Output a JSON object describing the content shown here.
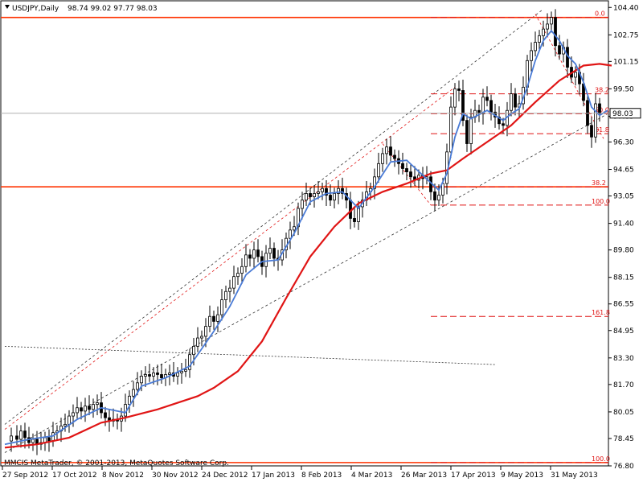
{
  "header": {
    "symbol_label": "USDJPY,Daily",
    "ohlc_label": "98.74 99.02 97.77 98.03"
  },
  "footer": {
    "copyright": "MMCIS MetaTrader, © 2001-2013, MetaQuotes Software Corp."
  },
  "colors": {
    "candle_up": "#ffffff",
    "candle_down": "#000000",
    "ma_fast": "#4a7bd6",
    "ma_slow": "#e01515",
    "horizontal_level": "#ff3300",
    "fib_dashed": "#e01515",
    "channel_dashed": "#333333",
    "current_price_line": "#b0b0b0"
  },
  "chart_data": {
    "type": "candlestick",
    "title": "USDJPY,Daily",
    "ylim": [
      76.8,
      104.8
    ],
    "grid": false,
    "y_ticks": [
      "104.40",
      "102.75",
      "101.15",
      "99.50",
      "97.85",
      "96.30",
      "94.65",
      "93.05",
      "91.40",
      "89.80",
      "88.15",
      "86.55",
      "84.95",
      "83.30",
      "81.70",
      "80.05",
      "78.45",
      "76.80"
    ],
    "x_ticks": [
      "27 Sep 2012",
      "17 Oct 2012",
      "8 Nov 2012",
      "30 Nov 2012",
      "24 Dec 2012",
      "17 Jan 2013",
      "8 Feb 2013",
      "4 Mar 2013",
      "26 Mar 2013",
      "17 Apr 2013",
      "9 May 2013",
      "31 May 2013"
    ],
    "current_price": "98.03",
    "ohlc_last": {
      "open": 98.74,
      "high": 99.02,
      "low": 97.77,
      "close": 98.03
    },
    "horizontal_levels": [
      103.8,
      93.6,
      77.0
    ],
    "fib_levels_upper": [
      {
        "label": "0.0",
        "value": 103.8
      },
      {
        "label": "38.2",
        "value": 99.2
      },
      {
        "label": "50.0",
        "value": 98.0
      },
      {
        "label": "61.8",
        "value": 96.8
      }
    ],
    "fib_levels_lower": [
      {
        "label": "38.2",
        "value": 93.6
      },
      {
        "label": "100.0",
        "value": 92.5
      },
      {
        "label": "161.8",
        "value": 85.8
      },
      {
        "label": "100.0",
        "value": 77.0
      }
    ],
    "close_path": [
      [
        0,
        78.3
      ],
      [
        8,
        78.6
      ],
      [
        15,
        78.4
      ],
      [
        20,
        78.9
      ],
      [
        25,
        78.5
      ],
      [
        30,
        78.2
      ],
      [
        35,
        78.4
      ],
      [
        40,
        78.1
      ],
      [
        45,
        78.2
      ],
      [
        50,
        78.5
      ],
      [
        55,
        78.3
      ],
      [
        60,
        78.8
      ],
      [
        65,
        78.9
      ],
      [
        70,
        79.2
      ],
      [
        75,
        79.3
      ],
      [
        80,
        79.8
      ],
      [
        85,
        80.0
      ],
      [
        90,
        80.3
      ],
      [
        95,
        80.1
      ],
      [
        100,
        80.4
      ],
      [
        105,
        80.2
      ],
      [
        110,
        80.5
      ],
      [
        115,
        80.6
      ],
      [
        120,
        80.0
      ],
      [
        125,
        79.7
      ],
      [
        130,
        79.5
      ],
      [
        135,
        79.6
      ],
      [
        140,
        79.5
      ],
      [
        145,
        79.8
      ],
      [
        150,
        80.5
      ],
      [
        155,
        81.0
      ],
      [
        160,
        81.4
      ],
      [
        165,
        81.8
      ],
      [
        170,
        82.2
      ],
      [
        175,
        82.3
      ],
      [
        180,
        82.2
      ],
      [
        185,
        82.4
      ],
      [
        190,
        82.3
      ],
      [
        195,
        82.1
      ],
      [
        200,
        82.3
      ],
      [
        205,
        82.4
      ],
      [
        210,
        82.2
      ],
      [
        215,
        82.4
      ],
      [
        220,
        82.5
      ],
      [
        225,
        82.6
      ],
      [
        230,
        83.5
      ],
      [
        235,
        84.0
      ],
      [
        240,
        84.5
      ],
      [
        245,
        84.6
      ],
      [
        250,
        85.2
      ],
      [
        255,
        85.8
      ],
      [
        260,
        85.5
      ],
      [
        265,
        85.9
      ],
      [
        270,
        86.8
      ],
      [
        275,
        87.3
      ],
      [
        280,
        87.5
      ],
      [
        285,
        88.2
      ],
      [
        290,
        88.4
      ],
      [
        295,
        88.8
      ],
      [
        300,
        89.5
      ],
      [
        305,
        89.3
      ],
      [
        310,
        89.8
      ],
      [
        315,
        89.4
      ],
      [
        320,
        88.8
      ],
      [
        325,
        89.6
      ],
      [
        330,
        89.9
      ],
      [
        335,
        89.3
      ],
      [
        340,
        89.2
      ],
      [
        345,
        89.8
      ],
      [
        350,
        90.5
      ],
      [
        355,
        91.0
      ],
      [
        360,
        91.2
      ],
      [
        365,
        92.3
      ],
      [
        370,
        92.8
      ],
      [
        375,
        93.2
      ],
      [
        380,
        93.0
      ],
      [
        385,
        93.2
      ],
      [
        390,
        93.3
      ],
      [
        395,
        93.5
      ],
      [
        400,
        93.1
      ],
      [
        405,
        92.8
      ],
      [
        410,
        93.2
      ],
      [
        415,
        93.5
      ],
      [
        420,
        93.2
      ],
      [
        425,
        92.8
      ],
      [
        430,
        91.7
      ],
      [
        435,
        91.5
      ],
      [
        440,
        92.4
      ],
      [
        445,
        92.8
      ],
      [
        450,
        93.3
      ],
      [
        455,
        93.5
      ],
      [
        460,
        94.2
      ],
      [
        465,
        95.0
      ],
      [
        470,
        95.6
      ],
      [
        475,
        96.0
      ],
      [
        480,
        95.5
      ],
      [
        485,
        95.3
      ],
      [
        490,
        95.0
      ],
      [
        495,
        94.7
      ],
      [
        500,
        94.5
      ],
      [
        505,
        94.2
      ],
      [
        510,
        94.0
      ],
      [
        515,
        94.3
      ],
      [
        520,
        94.1
      ],
      [
        525,
        94.2
      ],
      [
        530,
        93.3
      ],
      [
        535,
        92.8
      ],
      [
        540,
        93.1
      ],
      [
        545,
        93.8
      ],
      [
        550,
        95.7
      ],
      [
        555,
        98.4
      ],
      [
        560,
        99.5
      ],
      [
        565,
        99.4
      ],
      [
        570,
        97.6
      ],
      [
        575,
        96.2
      ],
      [
        580,
        97.8
      ],
      [
        585,
        98.2
      ],
      [
        590,
        98.0
      ],
      [
        595,
        99.0
      ],
      [
        600,
        98.8
      ],
      [
        605,
        98.1
      ],
      [
        610,
        97.8
      ],
      [
        615,
        97.4
      ],
      [
        620,
        97.3
      ],
      [
        625,
        98.2
      ],
      [
        630,
        99.2
      ],
      [
        635,
        98.4
      ],
      [
        640,
        98.6
      ],
      [
        645,
        99.6
      ],
      [
        650,
        101.2
      ],
      [
        655,
        101.8
      ],
      [
        660,
        102.3
      ],
      [
        665,
        102.7
      ],
      [
        670,
        103.1
      ],
      [
        675,
        103.4
      ],
      [
        680,
        103.8
      ],
      [
        685,
        102.1
      ],
      [
        690,
        101.6
      ],
      [
        695,
        102.0
      ],
      [
        700,
        100.8
      ],
      [
        705,
        100.2
      ],
      [
        710,
        100.5
      ],
      [
        715,
        99.8
      ],
      [
        720,
        98.8
      ],
      [
        725,
        97.3
      ],
      [
        730,
        96.6
      ],
      [
        735,
        98.6
      ],
      [
        740,
        98.03
      ]
    ],
    "ma_fast_path": [
      [
        0,
        78.1
      ],
      [
        30,
        78.4
      ],
      [
        60,
        78.6
      ],
      [
        90,
        79.6
      ],
      [
        120,
        80.3
      ],
      [
        150,
        80.0
      ],
      [
        170,
        81.6
      ],
      [
        200,
        82.1
      ],
      [
        230,
        82.8
      ],
      [
        260,
        84.9
      ],
      [
        280,
        86.4
      ],
      [
        300,
        88.3
      ],
      [
        320,
        89.1
      ],
      [
        340,
        89.2
      ],
      [
        360,
        90.8
      ],
      [
        380,
        92.7
      ],
      [
        400,
        93.2
      ],
      [
        420,
        93.3
      ],
      [
        440,
        92.3
      ],
      [
        460,
        93.6
      ],
      [
        480,
        95.1
      ],
      [
        500,
        95.2
      ],
      [
        520,
        94.3
      ],
      [
        540,
        93.4
      ],
      [
        550,
        94.4
      ],
      [
        560,
        96.6
      ],
      [
        570,
        98.0
      ],
      [
        580,
        97.7
      ],
      [
        600,
        98.2
      ],
      [
        620,
        97.6
      ],
      [
        630,
        98.0
      ],
      [
        640,
        98.3
      ],
      [
        650,
        99.6
      ],
      [
        660,
        101.2
      ],
      [
        670,
        102.4
      ],
      [
        680,
        103.0
      ],
      [
        690,
        102.4
      ],
      [
        700,
        101.5
      ],
      [
        710,
        101.0
      ],
      [
        720,
        99.9
      ],
      [
        730,
        98.4
      ],
      [
        740,
        97.9
      ],
      [
        750,
        98.2
      ]
    ],
    "ma_slow_path": [
      [
        0,
        77.9
      ],
      [
        40,
        78.1
      ],
      [
        80,
        78.5
      ],
      [
        120,
        79.4
      ],
      [
        150,
        79.7
      ],
      [
        190,
        80.2
      ],
      [
        240,
        81.0
      ],
      [
        260,
        81.5
      ],
      [
        290,
        82.5
      ],
      [
        320,
        84.3
      ],
      [
        350,
        86.9
      ],
      [
        380,
        89.4
      ],
      [
        410,
        91.2
      ],
      [
        440,
        92.6
      ],
      [
        470,
        93.3
      ],
      [
        500,
        93.8
      ],
      [
        530,
        94.4
      ],
      [
        550,
        94.6
      ],
      [
        570,
        95.3
      ],
      [
        600,
        96.3
      ],
      [
        630,
        97.3
      ],
      [
        660,
        98.7
      ],
      [
        690,
        100.0
      ],
      [
        720,
        100.9
      ],
      [
        740,
        101.0
      ],
      [
        755,
        100.9
      ]
    ]
  }
}
